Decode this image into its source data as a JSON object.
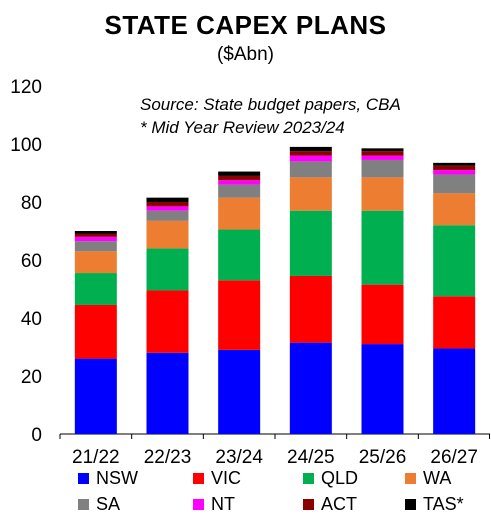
{
  "header": {
    "title": "STATE CAPEX PLANS",
    "subtitle": "($Abn)"
  },
  "notes": {
    "source": "Source: State budget papers, CBA",
    "footnote": "* Mid Year Review 2023/24"
  },
  "chart_data": {
    "type": "bar",
    "stacked": true,
    "categories": [
      "21/22",
      "22/23",
      "23/24",
      "24/25",
      "25/26",
      "26/27"
    ],
    "ylim": [
      0,
      120
    ],
    "yticks": [
      0,
      20,
      40,
      60,
      80,
      100,
      120
    ],
    "grid": false,
    "legend_position": "bottom",
    "series": [
      {
        "name": "NSW",
        "color": "#0000ff",
        "values": [
          26,
          28,
          29,
          31.5,
          31,
          29.5
        ]
      },
      {
        "name": "VIC",
        "color": "#ff0000",
        "values": [
          18.5,
          21.5,
          24,
          23,
          20.5,
          18
        ]
      },
      {
        "name": "QLD",
        "color": "#00b050",
        "values": [
          11,
          14.5,
          17.5,
          22.5,
          25.5,
          24.5
        ]
      },
      {
        "name": "WA",
        "color": "#ed7d31",
        "values": [
          7.5,
          9.5,
          11,
          11.5,
          11.5,
          11
        ]
      },
      {
        "name": "SA",
        "color": "#808080",
        "values": [
          3.5,
          3.5,
          4.5,
          5.5,
          6,
          6.5
        ]
      },
      {
        "name": "NT",
        "color": "#ff00ff",
        "values": [
          1.5,
          1.5,
          1.5,
          2,
          1.5,
          1.5
        ]
      },
      {
        "name": "ACT",
        "color": "#8b0000",
        "values": [
          1,
          1.5,
          1.5,
          1.5,
          1.5,
          1.5
        ]
      },
      {
        "name": "TAS*",
        "color": "#000000",
        "values": [
          1,
          1.5,
          1.5,
          1.5,
          1,
          1
        ]
      }
    ]
  }
}
